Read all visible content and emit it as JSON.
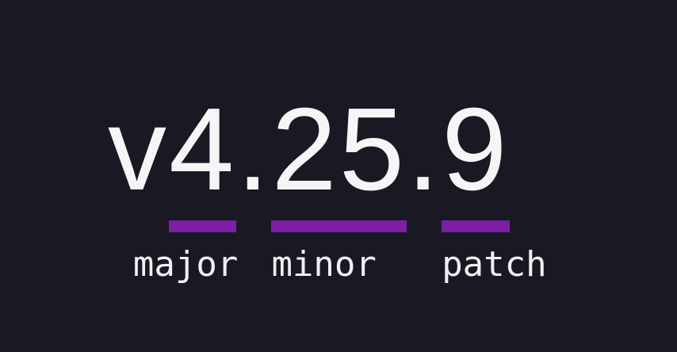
{
  "page": {
    "colors": {
      "background": "#181923",
      "accent_purple": "#7d1ea6",
      "version_text": "#f6f6f8",
      "label_text": "#f0f0f2"
    }
  },
  "version": {
    "full": "v4.25.9",
    "prefix": "v",
    "separator": ".",
    "major": "4",
    "minor": "25",
    "patch": "9"
  },
  "labels": {
    "major": "major",
    "minor": "minor",
    "patch": "patch"
  }
}
